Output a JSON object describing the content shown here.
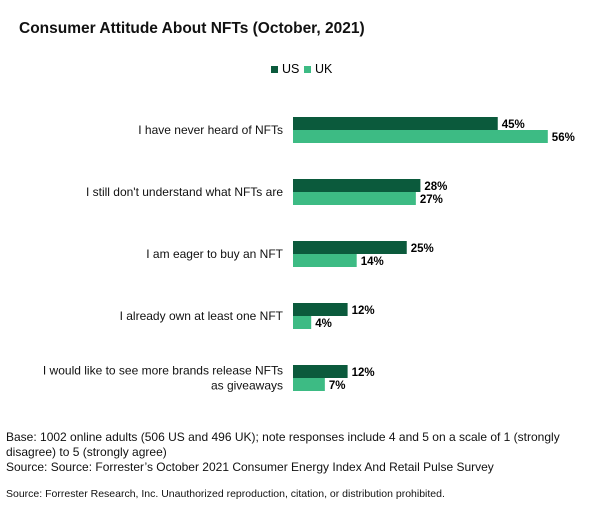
{
  "chart_data": {
    "type": "bar",
    "orientation": "horizontal",
    "title": "Consumer Attitude About NFTs (October, 2021)",
    "categories": [
      [
        "I have never heard of NFTs"
      ],
      [
        "I still don't understand what NFTs are"
      ],
      [
        "I am eager to buy an NFT"
      ],
      [
        "I already own at least one NFT"
      ],
      [
        "I would like to see more brands release NFTs",
        "as giveaways"
      ]
    ],
    "series": [
      {
        "name": "US",
        "color": "#0b5a3c",
        "values": [
          45,
          28,
          25,
          12,
          12
        ]
      },
      {
        "name": "UK",
        "color": "#3dbb84",
        "values": [
          56,
          27,
          14,
          4,
          7
        ]
      }
    ],
    "value_suffix": "%",
    "xlim": [
      0,
      56
    ],
    "grid": false,
    "legend_position": "top-center"
  },
  "notes": {
    "base": "Base: 1002 online adults (506 US and 496 UK); note responses include 4 and 5 on a scale of 1 (strongly disagree) to 5 (strongly  agree)",
    "source": "Source: Source: Forrester’s October 2021 Consumer Energy Index And Retail Pulse Survey"
  },
  "footer": "Source: Forrester Research, Inc. Unauthorized reproduction, citation, or distribution prohibited."
}
